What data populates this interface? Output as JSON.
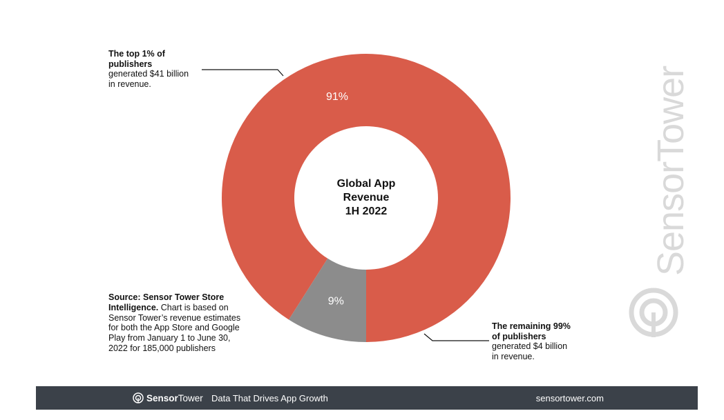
{
  "chart_data": {
    "type": "pie",
    "variant": "donut",
    "center_label": [
      "Global App",
      "Revenue",
      "1H 2022"
    ],
    "slices": [
      {
        "label": "The top 1% of publishers",
        "value": 91,
        "display": "91%",
        "color": "#d95c4a"
      },
      {
        "label": "The remaining 99% of publishers",
        "value": 9,
        "display": "9%",
        "color": "#8c8c8c"
      }
    ]
  },
  "annotations": {
    "top": {
      "line1": "The top 1% of",
      "line2": "publishers",
      "line3": "generated $41 billion",
      "line4": "in revenue."
    },
    "bottom": {
      "line1": "The remaining 99%",
      "line2": "of publishers",
      "line3": "generated $4 billion",
      "line4": "in revenue."
    }
  },
  "source": {
    "bold": "Source: Sensor Tower Store Intelligence.",
    "text": " Chart is based on Sensor Tower’s revenue estimates for both the App Store and Google Play from January 1 to June 30, 2022 for 185,000 publishers"
  },
  "watermark": {
    "text": "SensorTower"
  },
  "footer": {
    "brand_bold": "Sensor",
    "brand_light": "Tower",
    "tagline": "Data That Drives App Growth",
    "site": "sensortower.com",
    "background": "#3b4149"
  }
}
